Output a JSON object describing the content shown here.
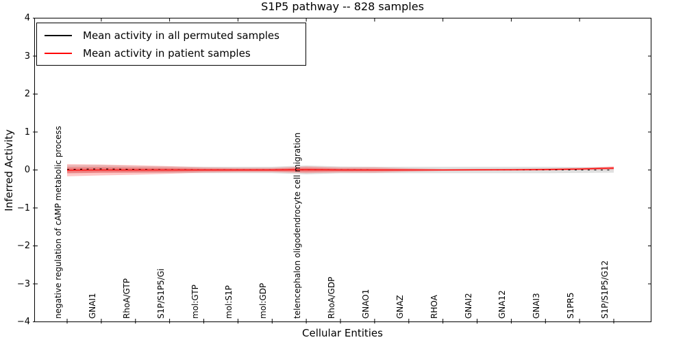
{
  "figure": {
    "title": "S1P5 pathway -- 828 samples",
    "xlabel": "Cellular Entities",
    "ylabel": "Inferred Activity"
  },
  "legend": {
    "position": "upper left",
    "items": [
      {
        "label": "Mean activity in all permuted samples",
        "color": "#000000"
      },
      {
        "label": "Mean activity in patient samples",
        "color": "#ff0000"
      }
    ]
  },
  "chart_data": {
    "type": "line",
    "title": "S1P5 pathway -- 828 samples",
    "xlabel": "Cellular Entities",
    "ylabel": "Inferred Activity",
    "ylim": [
      -4,
      4
    ],
    "yticks": [
      4,
      3,
      2,
      1,
      0,
      -1,
      -2,
      -3,
      -4
    ],
    "grid": false,
    "legend_position": "upper left",
    "categories": [
      "negative regulation of cAMP metabolic process",
      "GNAI1",
      "RhoA/GTP",
      "S1P/S1P5/Gi",
      "mol:GTP",
      "mol:S1P",
      "mol:GDP",
      "telencephalon oligodendrocyte cell migration",
      "RhoA/GDP",
      "GNAO1",
      "GNAZ",
      "RHOA",
      "GNAI2",
      "GNA12",
      "GNAI3",
      "S1PR5",
      "S1P/S1P5/G12"
    ],
    "series": [
      {
        "name": "Mean activity in all permuted samples",
        "color": "#000000",
        "style": "dashed",
        "values": [
          0.015,
          0.028,
          0.015,
          0.006,
          0.002,
          0.001,
          0.001,
          0.002,
          0.001,
          0.0,
          0.0,
          0.0,
          0.0,
          0.0,
          0.0,
          0.0,
          0.0
        ]
      },
      {
        "name": "Mean activity in patient samples",
        "color": "#ff0000",
        "style": "solid",
        "values": [
          -0.005,
          0.0,
          0.0,
          0.0,
          0.0,
          0.0,
          0.0,
          0.005,
          0.0,
          0.0,
          0.0,
          0.0,
          0.003,
          0.006,
          0.012,
          0.025,
          0.05
        ]
      }
    ],
    "bands": [
      {
        "name": "permuted samples range",
        "center_series": 0,
        "color": "#bbbbbb",
        "opacity": 0.45,
        "halfwidths": [
          0.11,
          0.1,
          0.09,
          0.085,
          0.085,
          0.085,
          0.085,
          0.117,
          0.09,
          0.085,
          0.085,
          0.085,
          0.085,
          0.085,
          0.085,
          0.08,
          0.072
        ]
      },
      {
        "name": "patient samples outer range",
        "center_series": 1,
        "color": "#ff0000",
        "opacity": 0.22,
        "halfwidths": [
          0.16,
          0.145,
          0.126,
          0.1,
          0.07,
          0.06,
          0.06,
          0.09,
          0.07,
          0.072,
          0.045,
          0.027,
          0.025,
          0.025,
          0.027,
          0.03,
          0.045
        ]
      },
      {
        "name": "patient samples inner range",
        "center_series": 1,
        "color": "#ff0000",
        "opacity": 0.28,
        "halfwidths": [
          0.072,
          0.072,
          0.063,
          0.054,
          0.036,
          0.032,
          0.032,
          0.054,
          0.036,
          0.032,
          0.022,
          0.014,
          0.014,
          0.014,
          0.016,
          0.018,
          0.022
        ]
      }
    ]
  }
}
